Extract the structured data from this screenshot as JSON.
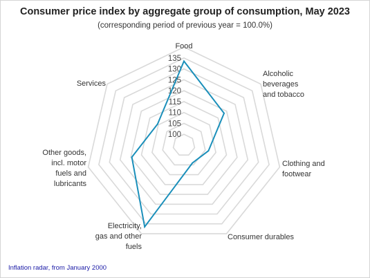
{
  "chart_data": {
    "type": "radar",
    "title": "Consumer price index by aggregate group of consumption, May 2023",
    "subtitle": "(corresponding period of previous year = 100.0%)",
    "categories": [
      "Food",
      "Alcoholic beverages and tobacco",
      "Clothing and footwear",
      "Consumer durables",
      "Electricity, gas and other fuels",
      "Other goods, incl. motor fuels and lubricants",
      "Services"
    ],
    "category_label_lines": [
      [
        "Food"
      ],
      [
        "Alcoholic",
        "beverages",
        "and tobacco"
      ],
      [
        "Clothing and",
        "footwear"
      ],
      [
        "Consumer durables"
      ],
      [
        "Electricity,",
        "gas and other",
        "fuels"
      ],
      [
        "Other goods,",
        "incl. motor",
        "fuels and",
        "lubricants"
      ],
      [
        "Services"
      ]
    ],
    "series": [
      {
        "values": [
          133.5,
          118.5,
          106.5,
          104.0,
          136.5,
          119.5,
          110.5
        ]
      }
    ],
    "r_ticks": [
      100,
      105,
      110,
      115,
      120,
      125,
      130,
      135
    ],
    "r_range": [
      95,
      140
    ],
    "line_color": "#1a8fba",
    "grid_color": "#d9d9d9"
  },
  "footer": {
    "link_text": "Inflation radar, from January 2000"
  }
}
